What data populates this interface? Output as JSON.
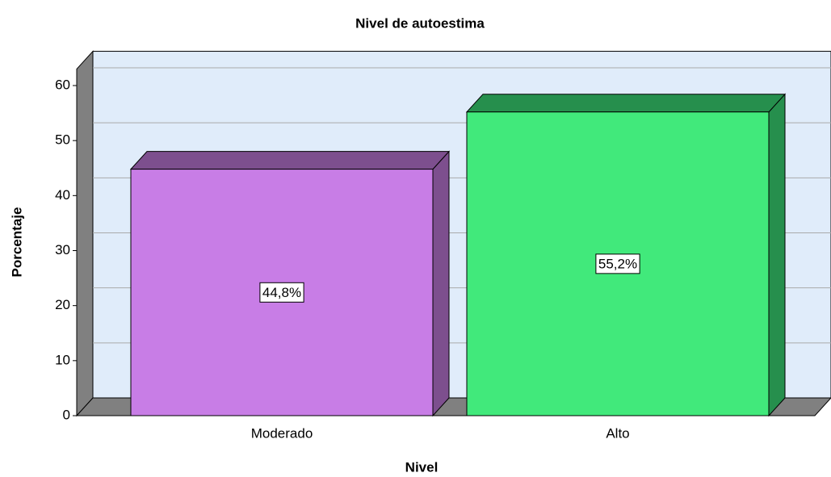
{
  "chart_data": {
    "type": "bar",
    "title": "Nivel de autoestima",
    "x_label": "Nivel",
    "y_label": "Porcentaje",
    "categories": [
      "Moderado",
      "Alto"
    ],
    "values": [
      44.8,
      55.2
    ],
    "value_labels": [
      "44,8%",
      "55,2%"
    ],
    "colors": [
      "#c87de6",
      "#41e97b"
    ],
    "top_colors": [
      "#7d4f8e",
      "#268f4d"
    ],
    "ylim": [
      0,
      63
    ],
    "yticks": [
      0,
      10,
      20,
      30,
      40,
      50,
      60
    ],
    "grid": true
  }
}
